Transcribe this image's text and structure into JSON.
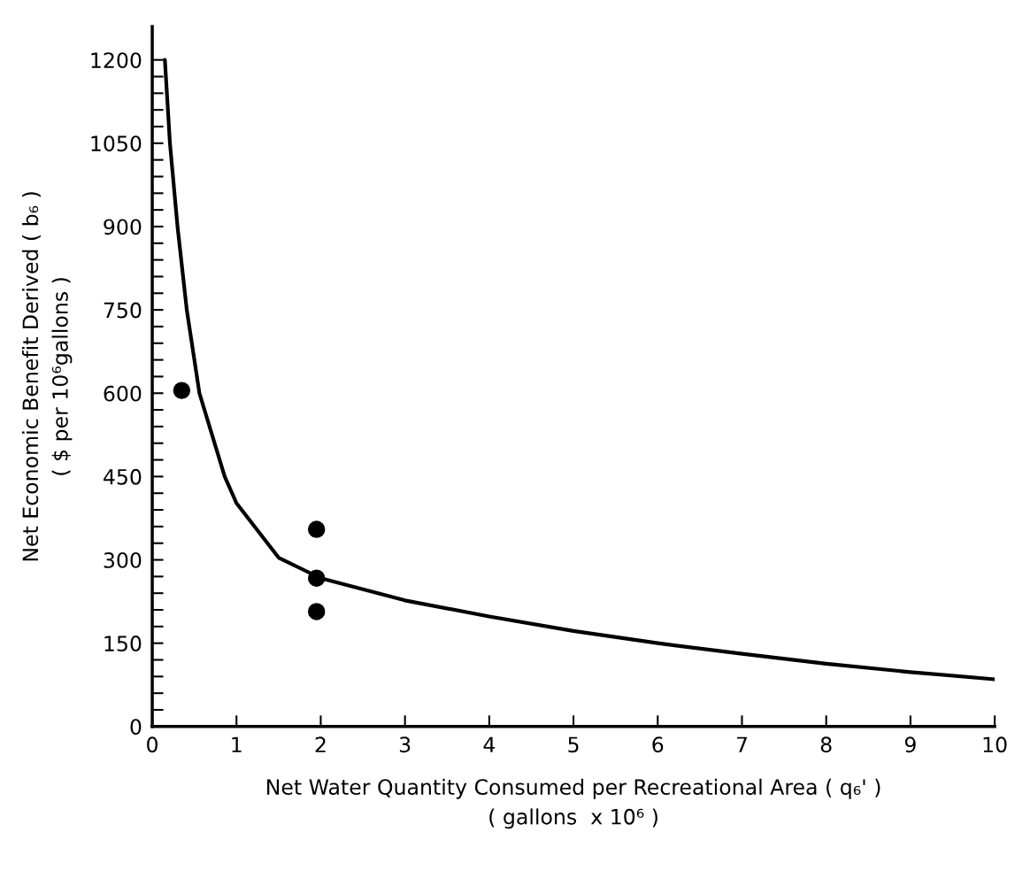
{
  "chart_data": {
    "type": "line",
    "xlabel": "Net Water Quantity Consumed per Recreational Area ( q₆' )\n( gallons  x 10⁶ )",
    "ylabel": "Net Economic Benefit Derived ( b₆ )\n( $ per 10⁶gallons )",
    "series": [
      {
        "color": "#000000",
        "x": [
          0.15,
          0.21,
          0.3,
          0.41,
          0.56,
          0.86,
          1,
          1.5,
          2,
          3,
          4,
          5,
          6,
          7,
          8,
          9,
          10
        ],
        "values": [
          1200,
          1050,
          900,
          750,
          600,
          450,
          402,
          304,
          267,
          227,
          198,
          172,
          150,
          131,
          113,
          98,
          85
        ],
        "marker": "none",
        "line_style": "solid"
      },
      {
        "type": "scatter",
        "color": "#000000",
        "x": [
          0.35,
          1.95,
          1.95,
          1.95
        ],
        "values": [
          605,
          355,
          267,
          207
        ],
        "marker": "circle"
      }
    ],
    "xlim": [
      0,
      10
    ],
    "ylim": [
      0,
      1260
    ],
    "xticks": [
      0,
      1,
      2,
      3,
      4,
      5,
      6,
      7,
      8,
      9,
      10
    ],
    "yticks": [
      0,
      {
        "value": 30,
        "label": null
      },
      {
        "value": 60,
        "label": null
      },
      {
        "value": 90,
        "label": null
      },
      {
        "value": 120,
        "label": null
      },
      150,
      {
        "value": 180,
        "label": null
      },
      {
        "value": 210,
        "label": null
      },
      {
        "value": 240,
        "label": null
      },
      {
        "value": 270,
        "label": null
      },
      300,
      {
        "value": 330,
        "label": null
      },
      {
        "value": 360,
        "label": null
      },
      {
        "value": 390,
        "label": null
      },
      {
        "value": 420,
        "label": null
      },
      450,
      {
        "value": 480,
        "label": null
      },
      {
        "value": 510,
        "label": null
      },
      {
        "value": 540,
        "label": null
      },
      {
        "value": 570,
        "label": null
      },
      600,
      {
        "value": 630,
        "label": null
      },
      {
        "value": 660,
        "label": null
      },
      {
        "value": 690,
        "label": null
      },
      {
        "value": 720,
        "label": null
      },
      750,
      {
        "value": 780,
        "label": null
      },
      {
        "value": 810,
        "label": null
      },
      {
        "value": 840,
        "label": null
      },
      {
        "value": 870,
        "label": null
      },
      900,
      {
        "value": 930,
        "label": null
      },
      {
        "value": 960,
        "label": null
      },
      {
        "value": 990,
        "label": null
      },
      {
        "value": 1020,
        "label": null
      },
      1050,
      {
        "value": 1080,
        "label": null
      },
      {
        "value": 1110,
        "label": null
      },
      {
        "value": 1140,
        "label": null
      },
      {
        "value": 1170,
        "label": null
      },
      1200
    ],
    "grid": false,
    "legend": false
  }
}
